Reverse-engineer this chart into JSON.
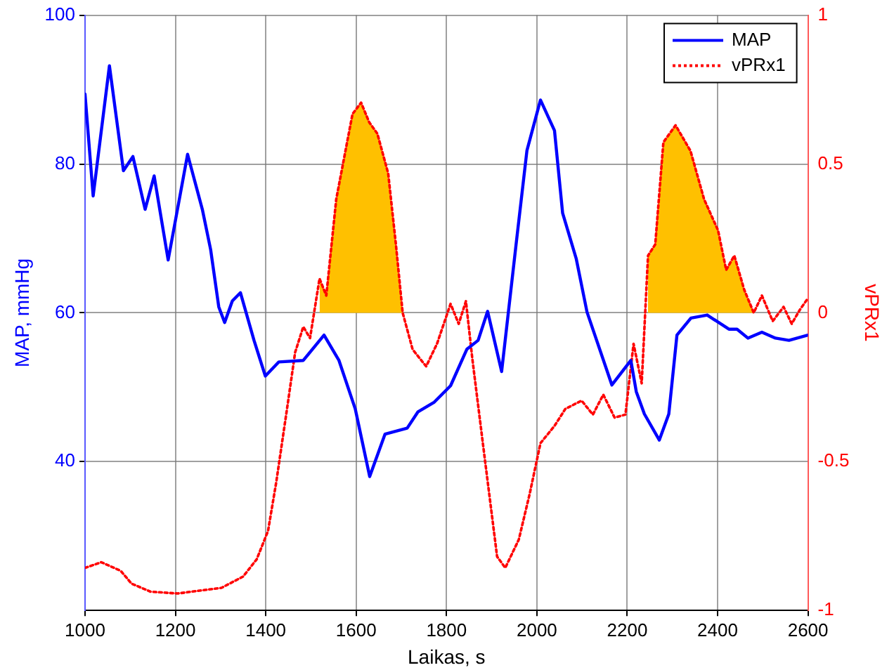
{
  "chart_data": {
    "type": "line",
    "xlabel": "Laikas, s",
    "ylabel": "MAP, mmHg",
    "y2label": "vPRx1",
    "xlim": [
      1000,
      2600
    ],
    "xticks": [
      1000,
      1200,
      1400,
      1600,
      1800,
      2000,
      2200,
      2400,
      2600
    ],
    "ylim": [
      20,
      100
    ],
    "yticks": [
      40,
      60,
      80,
      100
    ],
    "y2lim": [
      -1,
      1
    ],
    "y2ticks": [
      -1,
      -0.5,
      0,
      0.5,
      1
    ],
    "grid": true,
    "legend": "top right",
    "marker": "none",
    "series": [
      {
        "name": "MAP",
        "color": "#0000ff",
        "type": "line",
        "line_style": "solid",
        "x": [
          1000,
          1018,
          1054,
          1085,
          1106,
          1133,
          1153,
          1184,
          1227,
          1260,
          1278,
          1296,
          1309,
          1326,
          1344,
          1374,
          1399,
          1429,
          1483,
          1529,
          1562,
          1598,
          1630,
          1664,
          1713,
          1737,
          1773,
          1809,
          1845,
          1870,
          1891,
          1922,
          1954,
          1978,
          2008,
          2039,
          2057,
          2087,
          2111,
          2166,
          2208,
          2220,
          2238,
          2271,
          2292,
          2310,
          2341,
          2377,
          2425,
          2443,
          2467,
          2498,
          2528,
          2558,
          2600
        ],
        "values": [
          89.4,
          75.7,
          93.2,
          79.1,
          81,
          73.9,
          78.4,
          67.1,
          81.3,
          73.8,
          68.5,
          60.8,
          58.7,
          61.6,
          62.7,
          56.3,
          51.5,
          53.4,
          53.6,
          57,
          53.6,
          47.1,
          38,
          43.7,
          44.5,
          46.7,
          48,
          50.2,
          55.1,
          56.3,
          60.2,
          52.1,
          69.2,
          81.8,
          88.6,
          84.5,
          73.4,
          67.3,
          60.1,
          50.3,
          53.6,
          49.4,
          46.4,
          42.9,
          46.4,
          57,
          59.3,
          59.7,
          57.8,
          57.8,
          56.6,
          57.4,
          56.6,
          56.3,
          57
        ]
      },
      {
        "name": "vPRx1",
        "color": "#ff0000",
        "type": "line",
        "axis": "y2",
        "line_style": "dotted",
        "x": [
          1000,
          1036,
          1079,
          1103,
          1145,
          1205,
          1302,
          1350,
          1380,
          1405,
          1423,
          1447,
          1465,
          1483,
          1498,
          1519,
          1534,
          1556,
          1580,
          1592,
          1611,
          1629,
          1647,
          1671,
          1688,
          1703,
          1725,
          1755,
          1779,
          1809,
          1827,
          1843,
          1857,
          1882,
          1912,
          1930,
          1960,
          1984,
          2008,
          2039,
          2063,
          2099,
          2124,
          2147,
          2172,
          2196,
          2214,
          2232,
          2246,
          2262,
          2280,
          2307,
          2340,
          2370,
          2401,
          2419,
          2437,
          2459,
          2480,
          2498,
          2522,
          2546,
          2564,
          2582,
          2600
        ],
        "values": [
          -0.857,
          -0.838,
          -0.867,
          -0.91,
          -0.937,
          -0.943,
          -0.924,
          -0.886,
          -0.828,
          -0.733,
          -0.571,
          -0.323,
          -0.133,
          -0.047,
          -0.085,
          0.115,
          0.058,
          0.382,
          0.573,
          0.668,
          0.706,
          0.64,
          0.602,
          0.468,
          0.23,
          0,
          -0.123,
          -0.18,
          -0.104,
          0.03,
          -0.037,
          0.039,
          -0.152,
          -0.457,
          -0.819,
          -0.857,
          -0.762,
          -0.609,
          -0.438,
          -0.38,
          -0.323,
          -0.295,
          -0.342,
          -0.275,
          -0.352,
          -0.342,
          -0.104,
          -0.237,
          0.192,
          0.23,
          0.573,
          0.63,
          0.544,
          0.382,
          0.277,
          0.144,
          0.192,
          0.077,
          0,
          0.058,
          -0.028,
          0.02,
          -0.037,
          0.01,
          0.049
        ]
      },
      {
        "color": "#ffc000",
        "type": "area",
        "axis": "y2",
        "x": [
          1519,
          1534,
          1556,
          1580,
          1592,
          1611,
          1629,
          1647,
          1671,
          1688,
          1703,
          2000,
          2246,
          2262,
          2280,
          2307,
          2340,
          2370,
          2401,
          2419,
          2437,
          2459,
          2480
        ],
        "values": [
          0.115,
          0.058,
          0.382,
          0.573,
          0.668,
          0.706,
          0.64,
          0.602,
          0.468,
          0.23,
          0,
          null,
          0.192,
          0.23,
          0.573,
          0.63,
          0.544,
          0.382,
          0.277,
          0.144,
          0.192,
          0.077,
          0
        ]
      }
    ]
  }
}
